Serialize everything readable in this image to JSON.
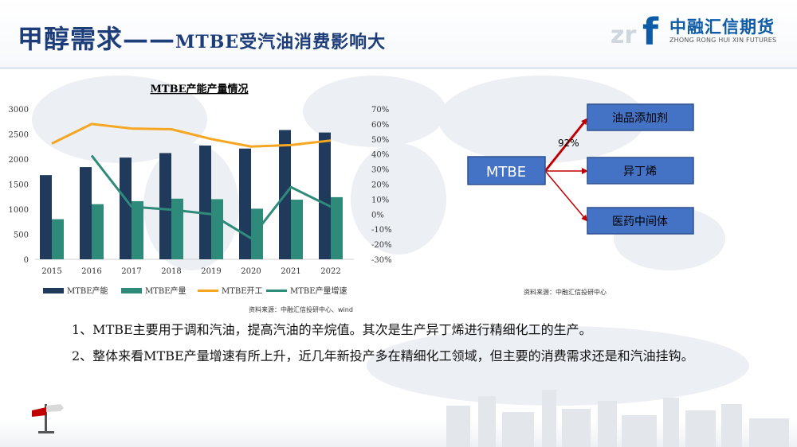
{
  "header": {
    "title_main": "甲醇需求——",
    "title_sub": "MTBE受汽油消费影响大"
  },
  "logo": {
    "cn": "中融汇信期货",
    "en": "ZHONG RONG HUI XIN FUTURES"
  },
  "colors": {
    "title": "#1c3d7a",
    "capacity": "#203a5c",
    "output": "#2e8b7a",
    "operating": "#f5a623",
    "growth": "#2e8b7a",
    "box_fill": "#4472c4",
    "box_border": "#2f528f",
    "arrow": "#c00000"
  },
  "chart_data": {
    "type": "bar",
    "title": "MTBE产能产量情况",
    "categories": [
      "2015",
      "2016",
      "2017",
      "2018",
      "2019",
      "2020",
      "2021",
      "2022"
    ],
    "series": [
      {
        "name": "MTBE产能",
        "kind": "bar",
        "axis": "left",
        "values": [
          1680,
          1840,
          2030,
          2120,
          2270,
          2210,
          2580,
          2530
        ]
      },
      {
        "name": "MTBE产量",
        "kind": "bar",
        "axis": "left",
        "values": [
          800,
          1100,
          1160,
          1210,
          1200,
          1010,
          1190,
          1240
        ]
      },
      {
        "name": "MTBE开工",
        "kind": "line",
        "axis": "right",
        "values": [
          47,
          60,
          57,
          56.5,
          50,
          45,
          46,
          49
        ]
      },
      {
        "name": "MTBE产量增速",
        "kind": "line",
        "axis": "right",
        "values": [
          null,
          39,
          5,
          3,
          0,
          -16,
          18,
          5
        ]
      }
    ],
    "y_left": {
      "min": 0,
      "max": 3000,
      "ticks": [
        "0",
        "500",
        "1000",
        "1500",
        "2000",
        "2500",
        "3000"
      ]
    },
    "y_right": {
      "min": -30,
      "max": 70,
      "ticks": [
        "-30%",
        "-20%",
        "-10%",
        "0%",
        "10%",
        "20%",
        "30%",
        "40%",
        "50%",
        "60%",
        "70%"
      ]
    },
    "grid": false,
    "legend": "bottom"
  },
  "chart_source": "资料来源：中融汇信投研中心、wind",
  "diagram": {
    "source_node": "MTBE",
    "targets": [
      "油品添加剂",
      "异丁烯",
      "医药中间体"
    ],
    "edge_label": "92%",
    "source_note": "资料来源：中融汇信投研中心"
  },
  "body": {
    "line1": "1、MTBE主要用于调和汽油，提高汽油的辛烷值。其次是生产异丁烯进行精细化工的生产。",
    "line2": "2、整体来看MTBE产量增速有所上升，近几年新投产多在精细化工领域，但主要的消费需求还是和汽油挂钩。"
  }
}
